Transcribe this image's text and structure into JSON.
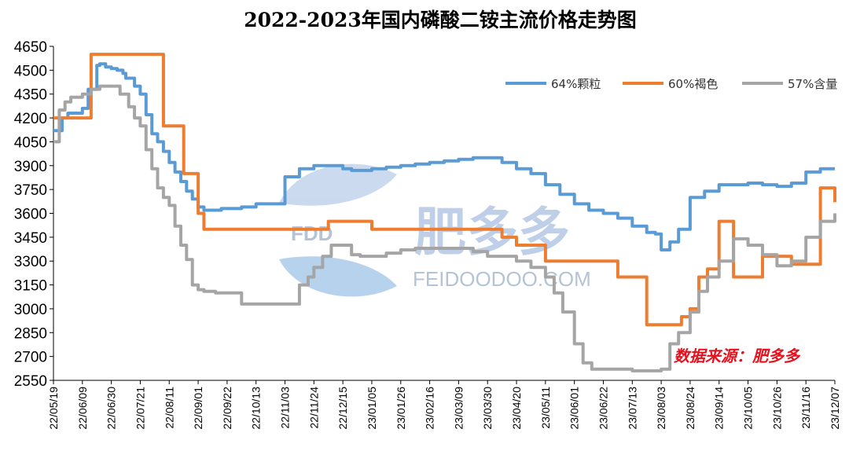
{
  "chart_data": {
    "type": "line",
    "title": "2022-2023年国内磷酸二铵主流价格走势图",
    "xlabel": "",
    "ylabel": "",
    "ylim": [
      2550,
      4650
    ],
    "yticks": [
      2550,
      2700,
      2850,
      3000,
      3150,
      3300,
      3450,
      3600,
      3750,
      3900,
      4050,
      4200,
      4350,
      4500,
      4650
    ],
    "xticks": [
      "22/05/19",
      "22/06/09",
      "22/06/30",
      "22/07/21",
      "22/08/11",
      "22/09/01",
      "22/09/22",
      "22/10/13",
      "22/11/03",
      "22/11/24",
      "22/12/15",
      "23/01/05",
      "23/01/26",
      "23/02/16",
      "23/03/09",
      "23/03/30",
      "23/04/20",
      "23/05/11",
      "23/06/01",
      "23/06/22",
      "23/07/13",
      "23/08/03",
      "23/08/24",
      "23/09/14",
      "23/10/05",
      "23/10/26",
      "23/11/16",
      "23/12/07"
    ],
    "grid": false,
    "legend_position": "top-right",
    "series": [
      {
        "name": "64%颗粒",
        "color": "#5b9bd5",
        "x": [
          0,
          0.3,
          0.5,
          1,
          1.2,
          1.5,
          1.6,
          1.8,
          2.0,
          2.2,
          2.4,
          2.5,
          2.8,
          3.0,
          3.2,
          3.4,
          3.6,
          3.8,
          4.0,
          4.2,
          4.4,
          4.6,
          4.8,
          5.0,
          5.2,
          5.4,
          5.6,
          5.8,
          6.0,
          6.2,
          6.5,
          7.0,
          8.0,
          8.5,
          9.0,
          9.5,
          10.0,
          10.3,
          10.6,
          11.0,
          11.5,
          12.0,
          12.5,
          13.0,
          13.5,
          14.0,
          14.5,
          15.0,
          15.5,
          16.0,
          16.5,
          17.0,
          17.5,
          18.0,
          18.5,
          19.0,
          19.5,
          20.0,
          20.5,
          20.8,
          21.0,
          21.3,
          21.6,
          22.0,
          22.5,
          23.0,
          23.5,
          24.0,
          24.5,
          25.0,
          25.5,
          26.0,
          26.5,
          27.0
        ],
        "values": [
          4120,
          4200,
          4230,
          4260,
          4380,
          4530,
          4540,
          4520,
          4510,
          4500,
          4480,
          4450,
          4400,
          4350,
          4220,
          4100,
          4050,
          3990,
          3920,
          3860,
          3800,
          3740,
          3690,
          3640,
          3620,
          3620,
          3620,
          3630,
          3630,
          3630,
          3640,
          3660,
          3830,
          3880,
          3900,
          3900,
          3880,
          3870,
          3870,
          3880,
          3890,
          3900,
          3910,
          3920,
          3930,
          3940,
          3950,
          3950,
          3920,
          3880,
          3850,
          3780,
          3720,
          3660,
          3620,
          3600,
          3570,
          3520,
          3480,
          3470,
          3370,
          3420,
          3500,
          3700,
          3740,
          3780,
          3780,
          3790,
          3780,
          3770,
          3790,
          3860,
          3880,
          3880
        ]
      },
      {
        "name": "60%褐色",
        "color": "#ed7d31",
        "x": [
          0,
          1.2,
          1.3,
          3.0,
          3.8,
          4.0,
          4.5,
          4.7,
          5.0,
          5.2,
          5.5,
          6.0,
          6.5,
          7.0,
          7.5,
          8.0,
          8.5,
          9.0,
          9.2,
          9.5,
          10.0,
          11.0,
          12.0,
          13.0,
          14.0,
          15.0,
          15.5,
          16.0,
          16.5,
          17.0,
          17.5,
          18.0,
          18.5,
          19.0,
          19.5,
          20.0,
          20.5,
          21.0,
          21.3,
          21.5,
          21.7,
          22.0,
          22.3,
          22.6,
          22.8,
          23.0,
          23.2,
          23.5,
          24.0,
          24.5,
          25.0,
          25.5,
          26.0,
          26.5,
          27.0
        ],
        "values": [
          4200,
          4200,
          4600,
          4600,
          4150,
          4150,
          3850,
          3850,
          3600,
          3500,
          3500,
          3500,
          3500,
          3500,
          3500,
          3500,
          3500,
          3500,
          3500,
          3550,
          3550,
          3500,
          3500,
          3500,
          3500,
          3500,
          3450,
          3400,
          3400,
          3300,
          3300,
          3300,
          3300,
          3300,
          3200,
          3200,
          2900,
          2900,
          2900,
          2900,
          2950,
          3000,
          3200,
          3250,
          3250,
          3550,
          3550,
          3200,
          3200,
          3330,
          3330,
          3280,
          3280,
          3760,
          3670
        ]
      },
      {
        "name": "57%含量",
        "color": "#a5a5a5",
        "x": [
          0,
          0.2,
          0.4,
          0.6,
          0.8,
          1.0,
          1.3,
          1.6,
          2.0,
          2.3,
          2.6,
          2.8,
          3.0,
          3.2,
          3.4,
          3.6,
          3.8,
          4.0,
          4.2,
          4.4,
          4.6,
          4.8,
          5.0,
          5.2,
          5.4,
          5.6,
          5.8,
          6.0,
          6.5,
          7.0,
          7.5,
          8.0,
          8.5,
          8.8,
          9.0,
          9.3,
          9.6,
          10.0,
          10.3,
          10.6,
          11.0,
          11.5,
          12.0,
          12.5,
          13.0,
          13.5,
          14.0,
          14.5,
          15.0,
          15.5,
          16.0,
          16.5,
          17.0,
          17.3,
          17.6,
          18.0,
          18.3,
          18.6,
          19.0,
          19.5,
          20.0,
          20.5,
          21.0,
          21.3,
          21.6,
          22.0,
          22.3,
          22.6,
          23.0,
          23.5,
          24.0,
          24.5,
          25.0,
          25.5,
          26.0,
          26.5,
          27.0
        ],
        "values": [
          4050,
          4250,
          4300,
          4330,
          4330,
          4350,
          4380,
          4400,
          4400,
          4350,
          4270,
          4200,
          4150,
          4000,
          3880,
          3760,
          3700,
          3650,
          3520,
          3400,
          3310,
          3150,
          3120,
          3110,
          3110,
          3100,
          3100,
          3100,
          3030,
          3030,
          3030,
          3030,
          3150,
          3200,
          3260,
          3330,
          3400,
          3400,
          3340,
          3330,
          3330,
          3350,
          3370,
          3380,
          3380,
          3380,
          3380,
          3360,
          3330,
          3330,
          3300,
          3260,
          3200,
          3100,
          2980,
          2780,
          2660,
          2620,
          2620,
          2620,
          2610,
          2610,
          2620,
          2780,
          2850,
          2980,
          3110,
          3200,
          3300,
          3440,
          3400,
          3340,
          3270,
          3300,
          3450,
          3550,
          3600
        ]
      }
    ],
    "annotation": "数据来源：肥多多"
  },
  "watermark": {
    "mark_text": "FDD",
    "brand_han": "肥多多",
    "brand_latin": "FEIDOODOO.COM",
    "color": "#a9bfe0"
  }
}
